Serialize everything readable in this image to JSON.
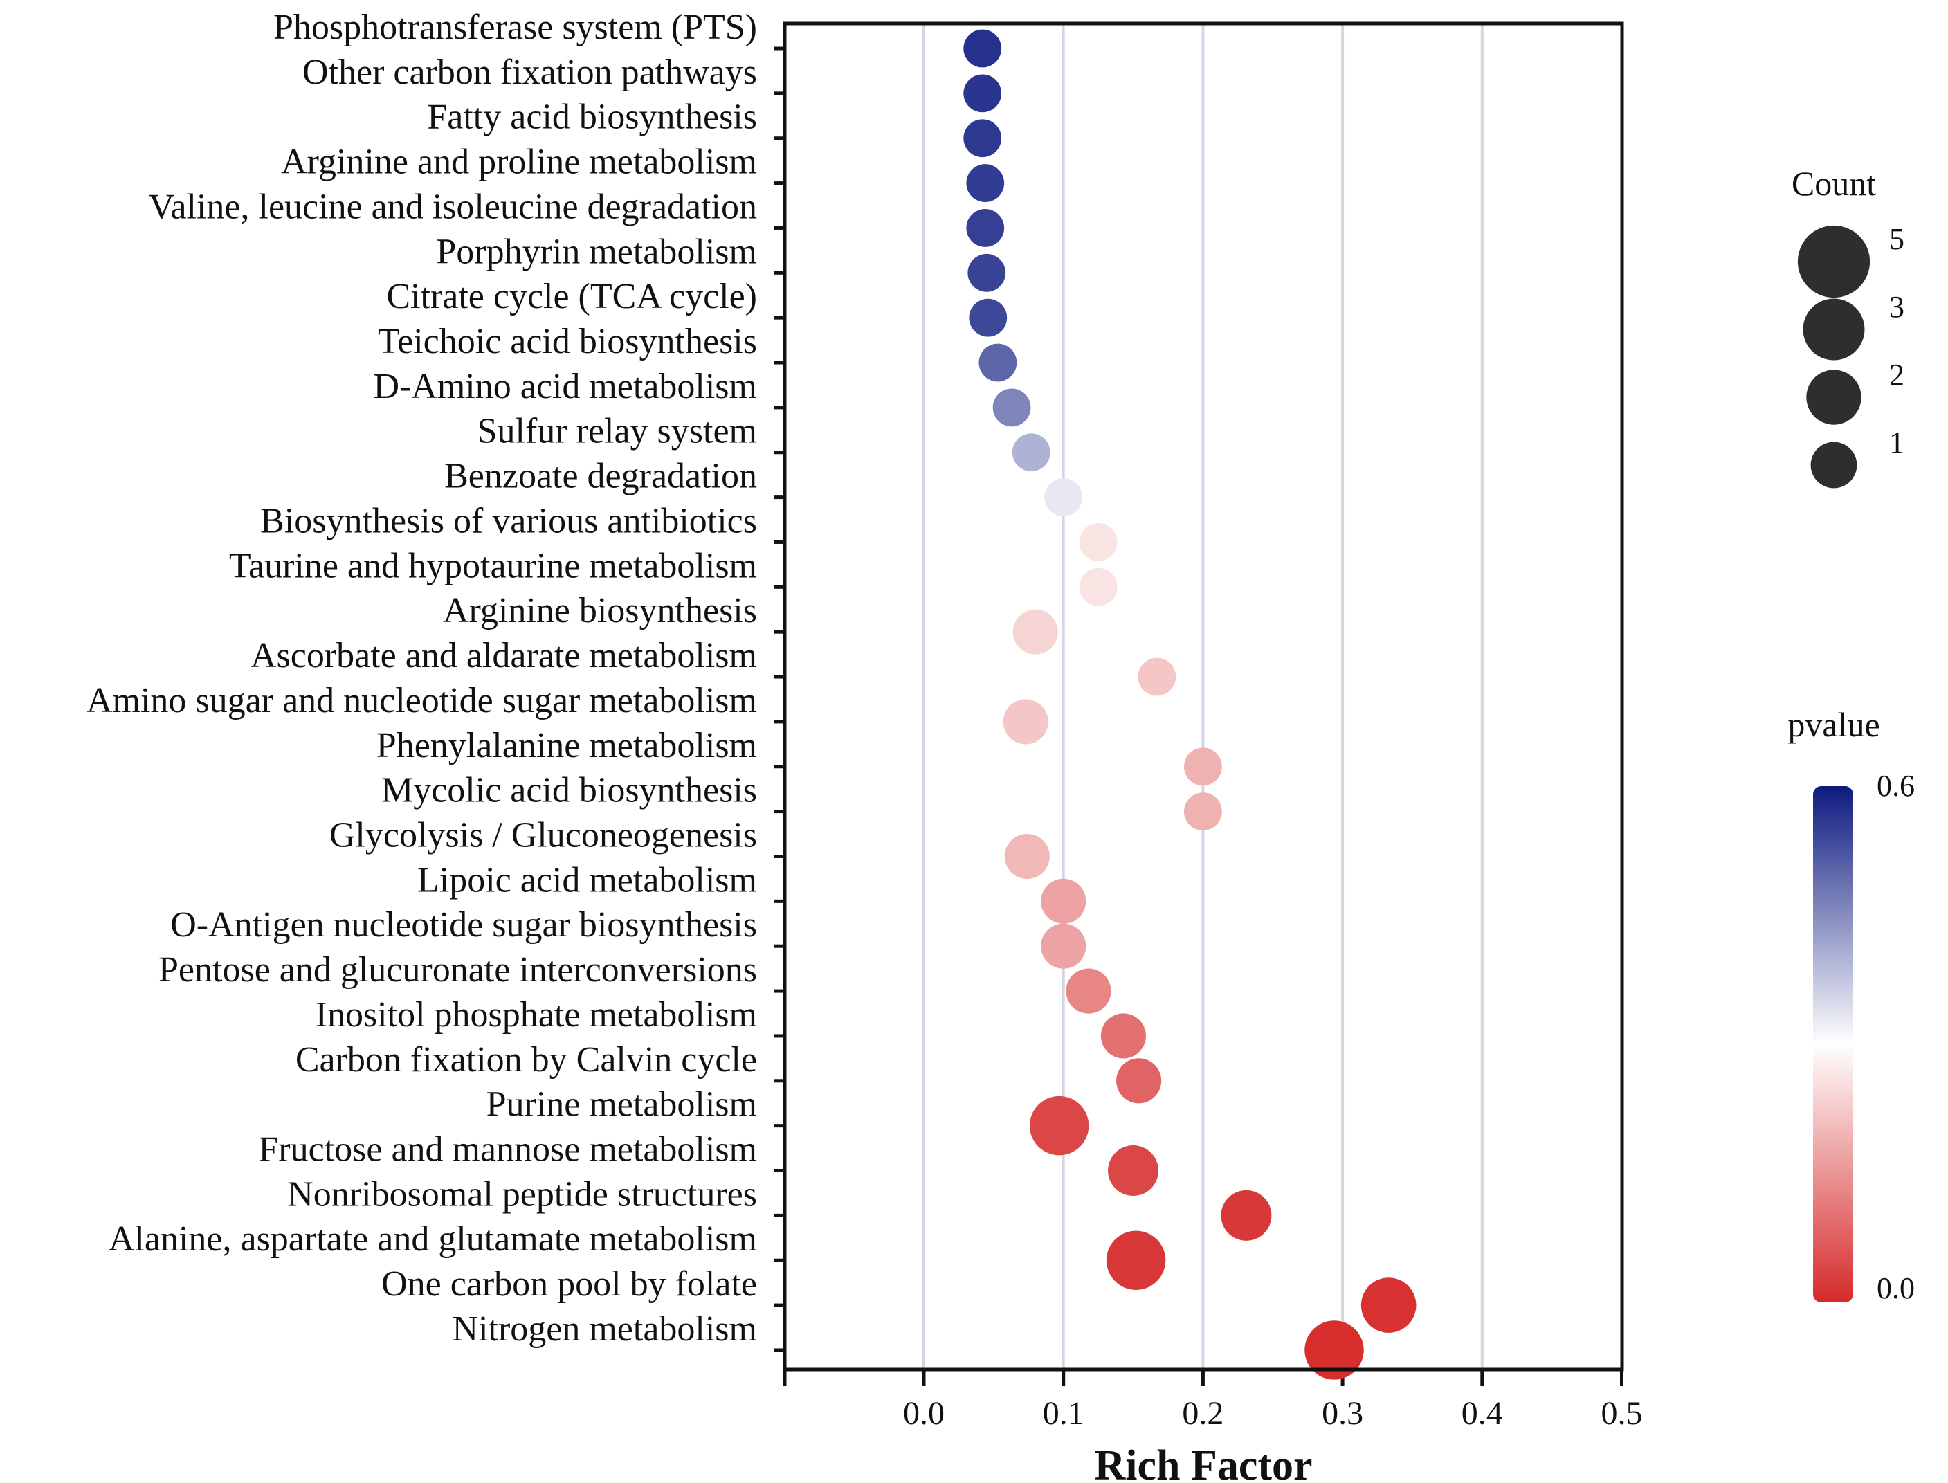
{
  "chart_data": {
    "type": "scatter",
    "subtype": "bubble",
    "xlabel": "Rich Factor",
    "x_ticks": [
      "0.0",
      "0.1",
      "0.2",
      "0.3",
      "0.4",
      "0.5"
    ],
    "xlim": [
      -0.1,
      0.5
    ],
    "grid": "vertical",
    "points": [
      {
        "category": "Phosphotransferase system (PTS)",
        "rich_factor": 0.042,
        "count": 1,
        "pvalue": 0.57
      },
      {
        "category": "Other carbon fixation pathways",
        "rich_factor": 0.042,
        "count": 1,
        "pvalue": 0.565
      },
      {
        "category": "Fatty acid biosynthesis",
        "rich_factor": 0.042,
        "count": 1,
        "pvalue": 0.56
      },
      {
        "category": "Arginine and proline metabolism",
        "rich_factor": 0.044,
        "count": 1,
        "pvalue": 0.555
      },
      {
        "category": "Valine, leucine and isoleucine degradation",
        "rich_factor": 0.044,
        "count": 1,
        "pvalue": 0.55
      },
      {
        "category": "Porphyrin metabolism",
        "rich_factor": 0.045,
        "count": 1,
        "pvalue": 0.545
      },
      {
        "category": "Citrate cycle (TCA cycle)",
        "rich_factor": 0.046,
        "count": 1,
        "pvalue": 0.54
      },
      {
        "category": "Teichoic acid biosynthesis",
        "rich_factor": 0.053,
        "count": 1,
        "pvalue": 0.5
      },
      {
        "category": "D-Amino acid metabolism",
        "rich_factor": 0.063,
        "count": 1,
        "pvalue": 0.46
      },
      {
        "category": "Sulfur relay system",
        "rich_factor": 0.077,
        "count": 1,
        "pvalue": 0.4
      },
      {
        "category": "Benzoate degradation",
        "rich_factor": 0.1,
        "count": 1,
        "pvalue": 0.33
      },
      {
        "category": "Biosynthesis of various antibiotics",
        "rich_factor": 0.125,
        "count": 1,
        "pvalue": 0.26
      },
      {
        "category": "Taurine and hypotaurine metabolism",
        "rich_factor": 0.125,
        "count": 1,
        "pvalue": 0.26
      },
      {
        "category": "Arginine biosynthesis",
        "rich_factor": 0.08,
        "count": 2,
        "pvalue": 0.24
      },
      {
        "category": "Ascorbate and aldarate metabolism",
        "rich_factor": 0.167,
        "count": 1,
        "pvalue": 0.22
      },
      {
        "category": "Amino sugar and nucleotide sugar metabolism",
        "rich_factor": 0.073,
        "count": 2,
        "pvalue": 0.22
      },
      {
        "category": "Phenylalanine metabolism",
        "rich_factor": 0.2,
        "count": 1,
        "pvalue": 0.19
      },
      {
        "category": "Mycolic acid biosynthesis",
        "rich_factor": 0.2,
        "count": 1,
        "pvalue": 0.19
      },
      {
        "category": "Glycolysis / Gluconeogenesis",
        "rich_factor": 0.074,
        "count": 2,
        "pvalue": 0.2
      },
      {
        "category": "Lipoic acid metabolism",
        "rich_factor": 0.1,
        "count": 2,
        "pvalue": 0.17
      },
      {
        "category": "O-Antigen nucleotide sugar biosynthesis",
        "rich_factor": 0.1,
        "count": 2,
        "pvalue": 0.17
      },
      {
        "category": "Pentose and glucuronate interconversions",
        "rich_factor": 0.118,
        "count": 2,
        "pvalue": 0.13
      },
      {
        "category": "Inositol phosphate metabolism",
        "rich_factor": 0.143,
        "count": 2,
        "pvalue": 0.1
      },
      {
        "category": "Carbon fixation by Calvin cycle",
        "rich_factor": 0.154,
        "count": 2,
        "pvalue": 0.08
      },
      {
        "category": "Purine metabolism",
        "rich_factor": 0.097,
        "count": 5,
        "pvalue": 0.04
      },
      {
        "category": "Fructose and mannose metabolism",
        "rich_factor": 0.15,
        "count": 3,
        "pvalue": 0.04
      },
      {
        "category": "Nonribosomal peptide structures",
        "rich_factor": 0.231,
        "count": 3,
        "pvalue": 0.02
      },
      {
        "category": "Alanine, aspartate and glutamate metabolism",
        "rich_factor": 0.152,
        "count": 5,
        "pvalue": 0.02
      },
      {
        "category": "One carbon pool by folate",
        "rich_factor": 0.333,
        "count": 4,
        "pvalue": 0.01
      },
      {
        "category": "Nitrogen metabolism",
        "rich_factor": 0.294,
        "count": 5,
        "pvalue": 0.005
      }
    ],
    "size_legend": {
      "title": "Count",
      "levels": [
        {
          "label": "5",
          "value": 5
        },
        {
          "label": "3",
          "value": 3
        },
        {
          "label": "2",
          "value": 2
        },
        {
          "label": "1",
          "value": 1
        }
      ]
    },
    "color_legend": {
      "title": "pvalue",
      "max_label": "0.6",
      "min_label": "0.0",
      "min": 0.0,
      "max": 0.6,
      "low_color": "#d62a2a",
      "mid_color": "#ffffff",
      "high_color": "#0d1a80"
    }
  }
}
